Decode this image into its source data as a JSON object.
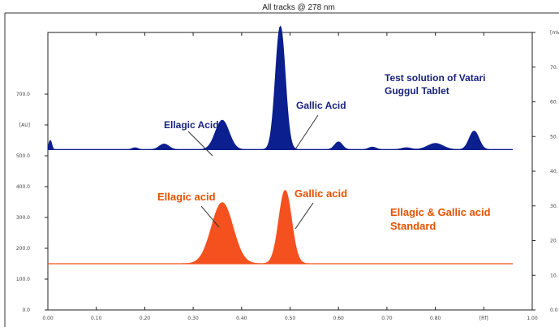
{
  "chart_data": {
    "type": "area",
    "title": "All tracks @ 278 nm",
    "xlabel": "[Rf]",
    "ylabel": "[AU]",
    "right_axis_label": "[mV]",
    "xlim": [
      0.0,
      1.0
    ],
    "ylim": [
      0,
      900
    ],
    "right_ylim": [
      0,
      80
    ],
    "x_ticks": [
      "0.00",
      "0.10",
      "0.20",
      "0.30",
      "0.40",
      "0.50",
      "0.60",
      "0.70",
      "0.80",
      "[Rf]",
      "1.00"
    ],
    "y_ticks": [
      "0.0",
      "100.0",
      "200.0",
      "300.0",
      "400.0",
      "500.0",
      "[AU]",
      "700.0"
    ],
    "right_y_ticks": [
      "0.0",
      "10.",
      "20.",
      "30.",
      "40.",
      "50.",
      "60.",
      "70.",
      "[mV]"
    ],
    "colors": {
      "test": "#0b1f8f",
      "standard": "#f4511e",
      "annotation_blue": "#1a237e",
      "annotation_orange": "#e65100"
    },
    "series": [
      {
        "name": "Test solution of Vatari Guggul Tablet",
        "baseline": 520,
        "peaks": [
          {
            "x": 0.005,
            "height": 30,
            "width": 0.003
          },
          {
            "x": 0.18,
            "height": 6,
            "width": 0.006
          },
          {
            "x": 0.24,
            "height": 18,
            "width": 0.01
          },
          {
            "x": 0.36,
            "height": 95,
            "width": 0.014
          },
          {
            "x": 0.48,
            "height": 400,
            "width": 0.01
          },
          {
            "x": 0.6,
            "height": 25,
            "width": 0.008
          },
          {
            "x": 0.67,
            "height": 8,
            "width": 0.008
          },
          {
            "x": 0.74,
            "height": 6,
            "width": 0.01
          },
          {
            "x": 0.8,
            "height": 20,
            "width": 0.016
          },
          {
            "x": 0.88,
            "height": 60,
            "width": 0.01
          }
        ]
      },
      {
        "name": "Ellagic & Gallic acid Standard",
        "baseline": 150,
        "peaks": [
          {
            "x": 0.36,
            "height": 198,
            "width": 0.022
          },
          {
            "x": 0.49,
            "height": 238,
            "width": 0.013
          }
        ]
      }
    ],
    "annotations": [
      {
        "text": "Ellagic Acid",
        "x": 0.36,
        "y": 580,
        "group": "test"
      },
      {
        "text": "Gallic Acid",
        "x": 0.5,
        "y": 560,
        "group": "test"
      },
      {
        "text": "Ellagic acid",
        "x": 0.36,
        "y": 330,
        "group": "standard"
      },
      {
        "text": "Gallic acid",
        "x": 0.49,
        "y": 330,
        "group": "standard"
      }
    ],
    "labels": {
      "test_line1": "Test solution of Vatari",
      "test_line2": "Guggul Tablet",
      "std_line1": "Ellagic & Gallic acid",
      "std_line2": "Standard",
      "ellagic_test": "Ellagic Acid",
      "gallic_test": "Gallic Acid",
      "ellagic_std": "Ellagic acid",
      "gallic_std": "Gallic acid"
    }
  }
}
